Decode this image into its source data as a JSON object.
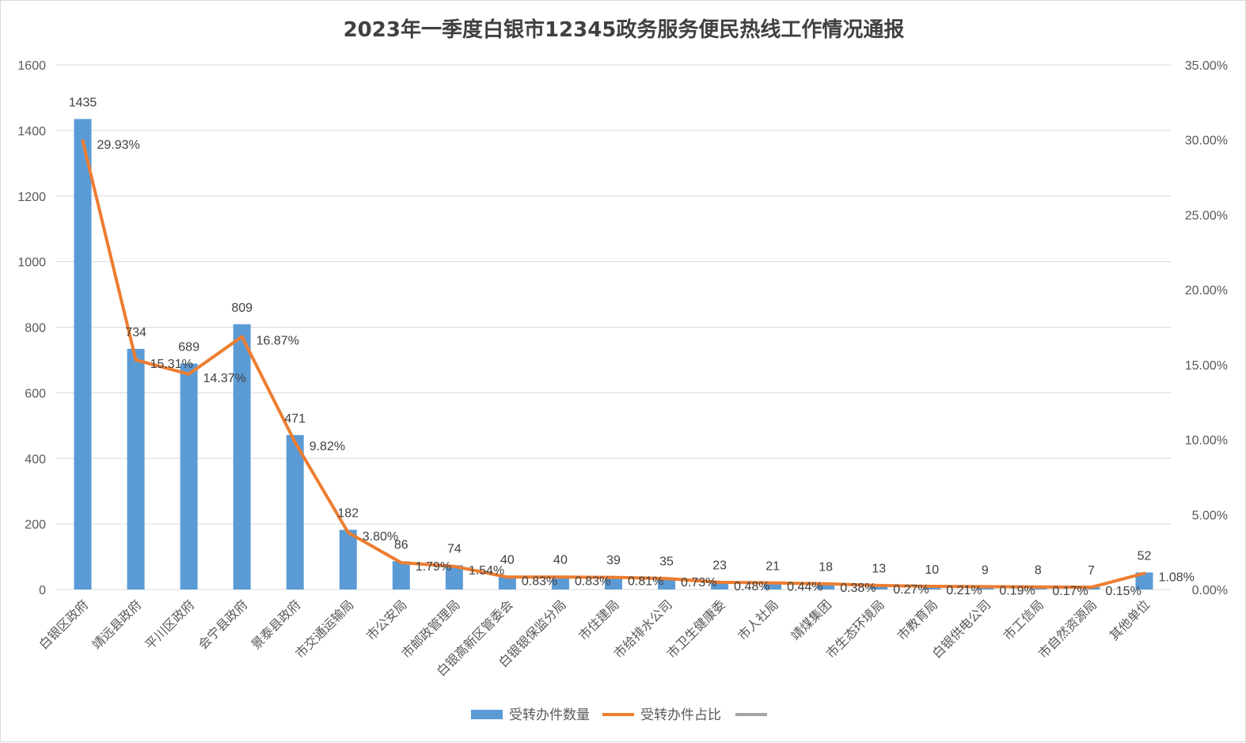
{
  "chart_data": {
    "type": "bar",
    "title": "2023年一季度白银市12345政务服务便民热线工作情况通报",
    "categories": [
      "白银区政府",
      "靖远县政府",
      "平川区政府",
      "会宁县政府",
      "景泰县政府",
      "市交通运输局",
      "市公安局",
      "市邮政管理局",
      "白银高新区管委会",
      "白银银保监分局",
      "市住建局",
      "市给排水公司",
      "市卫生健康委",
      "市人社局",
      "靖煤集团",
      "市生态环境局",
      "市教育局",
      "白银供电公司",
      "市工信局",
      "市自然资源局",
      "其他单位"
    ],
    "series": [
      {
        "name": "受转办件数量",
        "type": "bar",
        "axis": "left",
        "color": "#5B9BD5",
        "values": [
          1435,
          734,
          689,
          809,
          471,
          182,
          86,
          74,
          40,
          40,
          39,
          35,
          23,
          21,
          18,
          13,
          10,
          9,
          8,
          7,
          52
        ],
        "labels": [
          "1435",
          "734",
          "689",
          "809",
          "471",
          "182",
          "86",
          "74",
          "40",
          "40",
          "39",
          "35",
          "23",
          "21",
          "18",
          "13",
          "10",
          "9",
          "8",
          "7",
          "52"
        ]
      },
      {
        "name": "受转办件占比",
        "type": "line",
        "axis": "right",
        "color": "#ED7D31",
        "values": [
          29.93,
          15.31,
          14.37,
          16.87,
          9.82,
          3.8,
          1.79,
          1.54,
          0.83,
          0.83,
          0.81,
          0.73,
          0.48,
          0.44,
          0.38,
          0.27,
          0.21,
          0.19,
          0.17,
          0.15,
          1.08
        ],
        "labels": [
          "29.93%",
          "15.31%",
          "14.37%",
          "16.87%",
          "9.82%",
          "3.80%",
          "1.79%",
          "1.54%",
          "0.83%",
          "0.83%",
          "0.81%",
          "0.73%",
          "0.48%",
          "0.44%",
          "0.38%",
          "0.27%",
          "0.21%",
          "0.19%",
          "0.17%",
          "0.15%",
          "1.08%"
        ]
      }
    ],
    "y_left": {
      "range": [
        0,
        1600
      ],
      "ticks": [
        "0",
        "200",
        "400",
        "600",
        "800",
        "1000",
        "1200",
        "1400",
        "1600"
      ]
    },
    "y_right": {
      "range": [
        0,
        35
      ],
      "ticks": [
        "0.00%",
        "5.00%",
        "10.00%",
        "15.00%",
        "20.00%",
        "25.00%",
        "30.00%",
        "35.00%"
      ]
    },
    "grid": true,
    "legend": {
      "position": "bottom",
      "extra_entry_color": "#A5A5A5"
    }
  }
}
